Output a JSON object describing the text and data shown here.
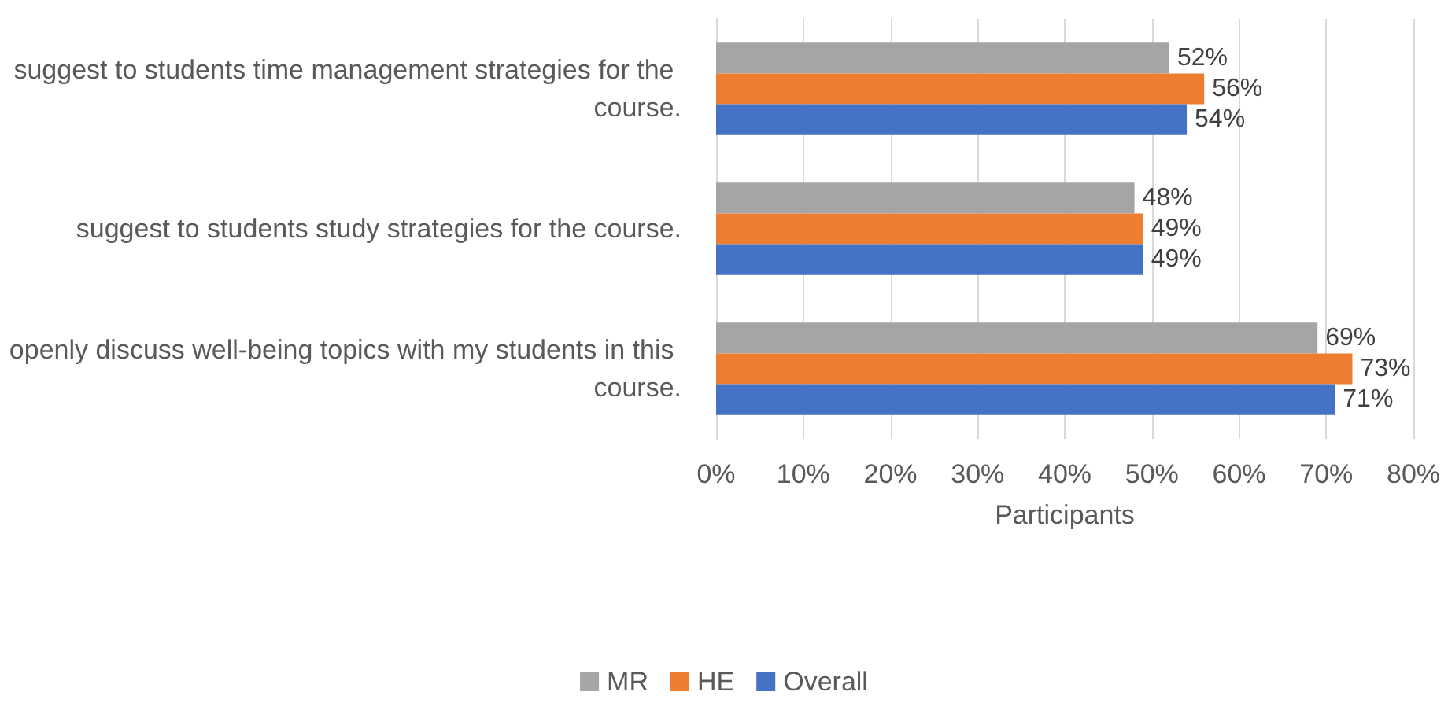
{
  "chart_data": {
    "type": "bar",
    "orientation": "horizontal",
    "xlabel": "Participants",
    "categories": [
      "suggest to students time management strategies for the course.",
      "suggest to students study strategies for the course.",
      "openly discuss well-being topics with my students in this course."
    ],
    "series": [
      {
        "name": "MR",
        "color": "#a5a5a5",
        "values": [
          52,
          48,
          69
        ],
        "value_labels": [
          "52%",
          "48%",
          "69%"
        ]
      },
      {
        "name": "HE",
        "color": "#ed7d31",
        "values": [
          56,
          49,
          73
        ],
        "value_labels": [
          "56%",
          "49%",
          "73%"
        ]
      },
      {
        "name": "Overall",
        "color": "#4472c4",
        "values": [
          54,
          49,
          71
        ],
        "value_labels": [
          "54%",
          "49%",
          "71%"
        ]
      }
    ],
    "xlim": [
      0,
      80
    ],
    "xticks": [
      {
        "value": 0,
        "label": "0%"
      },
      {
        "value": 10,
        "label": "10%"
      },
      {
        "value": 20,
        "label": "20%"
      },
      {
        "value": 30,
        "label": "30%"
      },
      {
        "value": 40,
        "label": "40%"
      },
      {
        "value": 50,
        "label": "50%"
      },
      {
        "value": 60,
        "label": "60%"
      },
      {
        "value": 70,
        "label": "70%"
      },
      {
        "value": 80,
        "label": "80%"
      }
    ],
    "grid": "x",
    "legend": "bottom"
  }
}
